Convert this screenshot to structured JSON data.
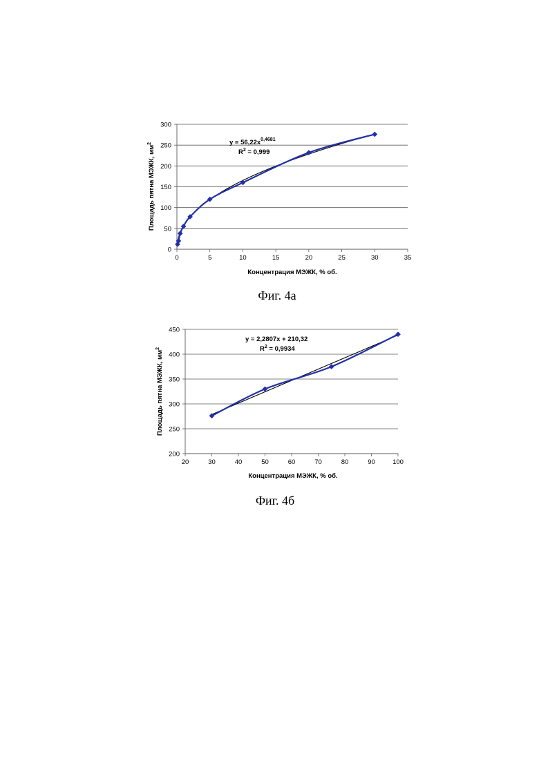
{
  "colors": {
    "series": "#2231a8",
    "trendline": "#000000",
    "grid": "#5a5a5a",
    "axis": "#5a5a5a"
  },
  "captions": [
    "Фиг. 4а",
    "Фиг. 4б"
  ],
  "chart_data": [
    {
      "type": "scatter",
      "series_style": "smooth-line-with-diamond-markers",
      "x": [
        0.1,
        0.25,
        0.5,
        1,
        2,
        5,
        10,
        20,
        30
      ],
      "y": [
        12,
        20,
        38,
        55,
        78,
        120,
        160,
        232,
        276
      ],
      "xlabel": "Концентрация МЭЖК, % об.",
      "ylabel": "Площадь пятна МЭЖК, мм",
      "ylabel_sup": "2",
      "xlim": [
        0,
        35
      ],
      "ylim": [
        0,
        300
      ],
      "x_ticks": [
        "0",
        "5",
        "10",
        "15",
        "20",
        "25",
        "30",
        "35"
      ],
      "y_ticks": [
        "0",
        "50",
        "100",
        "150",
        "200",
        "250",
        "300"
      ],
      "grid": "horizontal",
      "trendline": {
        "type": "power",
        "a": 56.22,
        "b": 0.4681,
        "equation_base": "y = 56,22x",
        "equation_exp": "0,4681",
        "r2_prefix": "R",
        "r2_sup": "2",
        "r2_value": " = 0,999"
      }
    },
    {
      "type": "scatter",
      "series_style": "smooth-line-with-diamond-markers",
      "x": [
        30,
        50,
        75,
        100
      ],
      "y": [
        276,
        330,
        375,
        440
      ],
      "xlabel": "Концентрация МЭЖК, % об.",
      "ylabel": "Площадь пятна МЭЖК, мм",
      "ylabel_sup": "2",
      "xlim": [
        20,
        100
      ],
      "ylim": [
        200,
        450
      ],
      "x_ticks": [
        "20",
        "30",
        "40",
        "50",
        "60",
        "70",
        "80",
        "90",
        "100"
      ],
      "y_ticks": [
        "200",
        "250",
        "300",
        "350",
        "400",
        "450"
      ],
      "grid": "horizontal",
      "trendline": {
        "type": "linear",
        "a": 2.2807,
        "b": 210.32,
        "equation_base": "y = 2,2807x + 210,32",
        "equation_exp": "",
        "r2_prefix": "R",
        "r2_sup": "2",
        "r2_value": " = 0,9934"
      }
    }
  ]
}
